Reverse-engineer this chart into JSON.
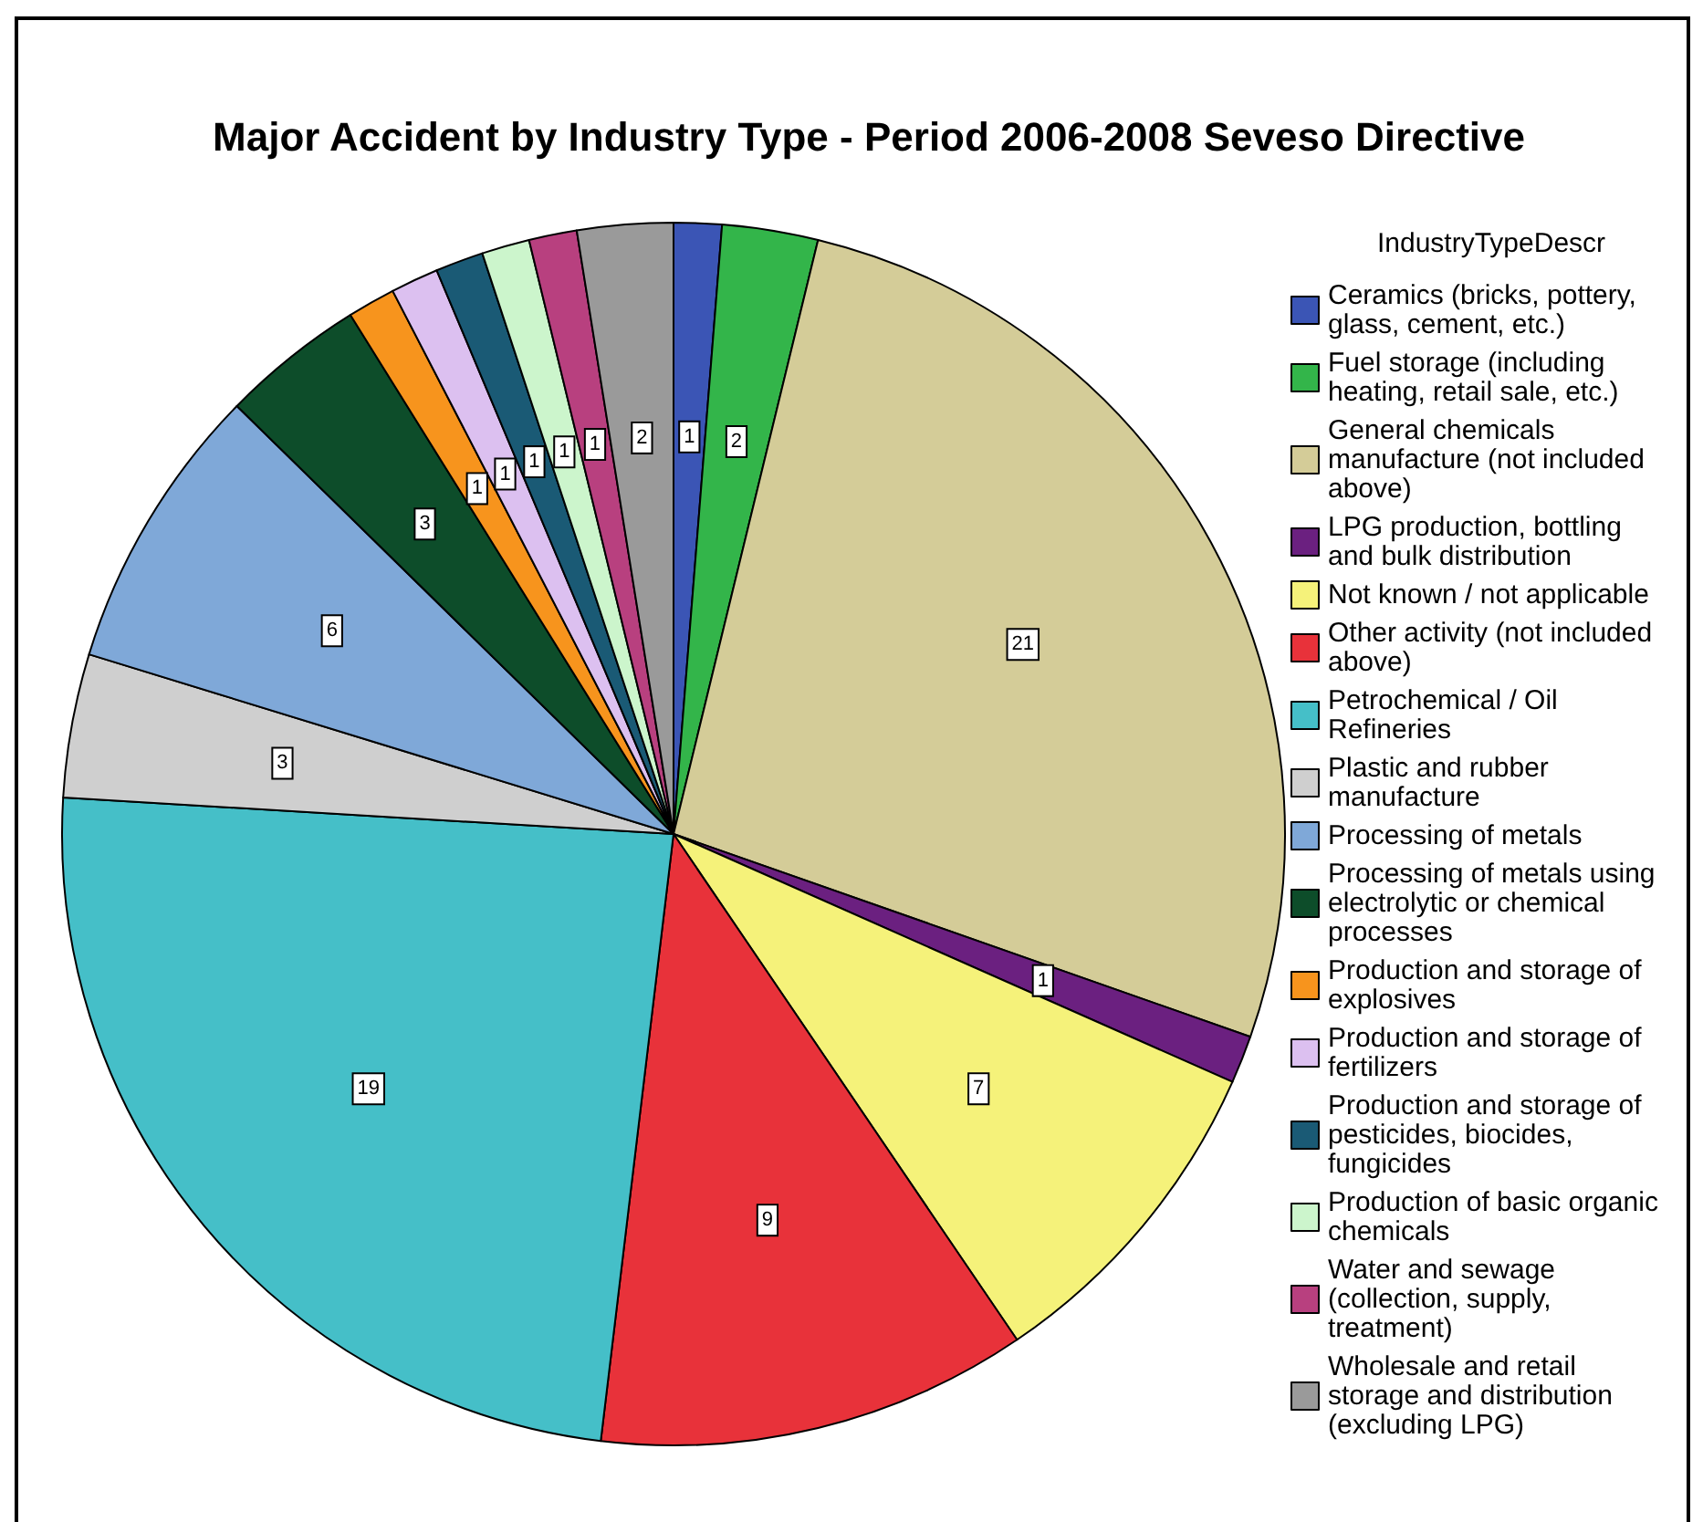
{
  "chart_data": {
    "type": "pie",
    "title": "Major Accident by Industry Type - Period 2006-2008 Seveso Directive",
    "legend_title": "IndustryTypeDescr",
    "categories": [
      "Ceramics (bricks, pottery, glass, cement, etc.)",
      "Fuel storage (including heating, retail sale, etc.)",
      "General chemicals manufacture (not included above)",
      "LPG production, bottling and bulk distribution",
      "Not known / not applicable",
      "Other activity (not included above)",
      "Petrochemical / Oil Refineries",
      "Plastic and rubber manufacture",
      "Processing of metals",
      "Processing of metals using electrolytic or chemical processes",
      "Production and storage of explosives",
      "Production and storage of fertilizers",
      "Production and storage of pesticides, biocides, fungicides",
      "Production of basic organic chemicals",
      "Water and sewage (collection, supply, treatment)",
      "Wholesale and retail storage and distribution (excluding LPG)"
    ],
    "values": [
      1,
      2,
      21,
      1,
      7,
      9,
      19,
      3,
      6,
      3,
      1,
      1,
      1,
      1,
      1,
      2
    ],
    "colors": [
      "#3b55b5",
      "#33b54a",
      "#d4cc98",
      "#6b2080",
      "#f5f27a",
      "#e8323a",
      "#45bfc8",
      "#cfcfcf",
      "#7fa8d8",
      "#0d4d2a",
      "#f7941d",
      "#dcc0f0",
      "#1a5a75",
      "#ccf5cc",
      "#b8407f",
      "#9a9a9a"
    ],
    "data_labels": true,
    "legend": "right"
  }
}
